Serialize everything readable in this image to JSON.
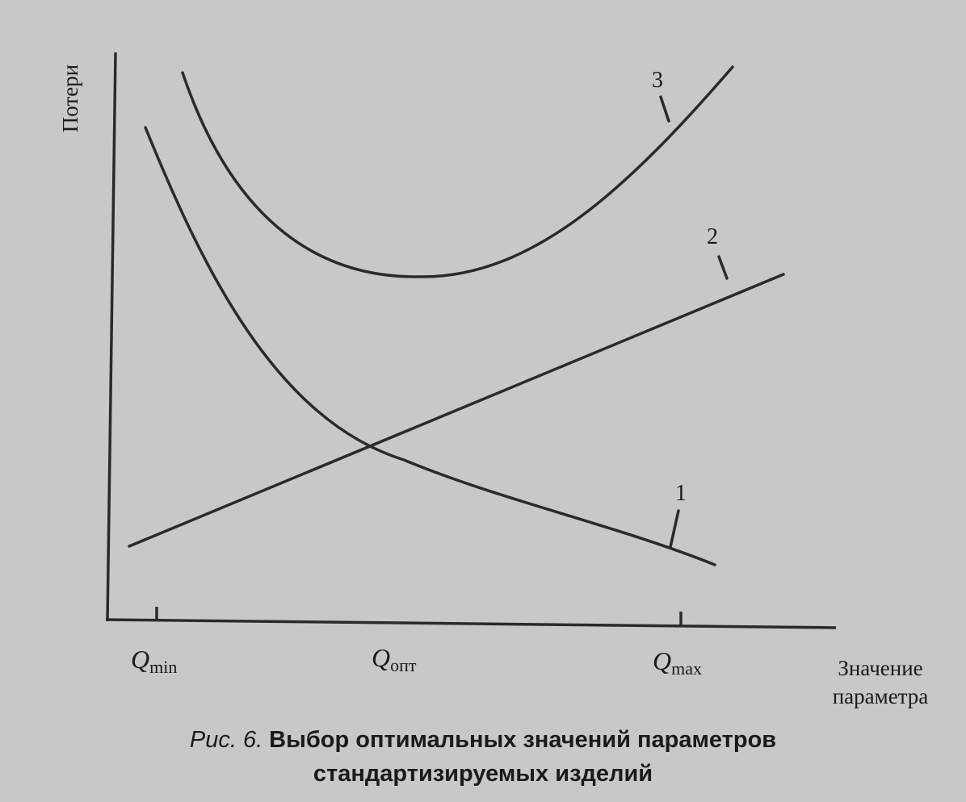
{
  "axes": {
    "y_label": "Потери",
    "x_label": [
      "Значение",
      "параметра"
    ]
  },
  "ticks": [
    {
      "symbol": "Q",
      "subscript": "min"
    },
    {
      "symbol": "Q",
      "subscript": "опт"
    },
    {
      "symbol": "Q",
      "subscript": "max"
    }
  ],
  "curves": [
    {
      "label": "1"
    },
    {
      "label": "2"
    },
    {
      "label": "3"
    }
  ],
  "caption": {
    "number": "Рис. 6.",
    "title": [
      "Выбор оптимальных значений параметров",
      "стандартизируемых изделий"
    ]
  }
}
